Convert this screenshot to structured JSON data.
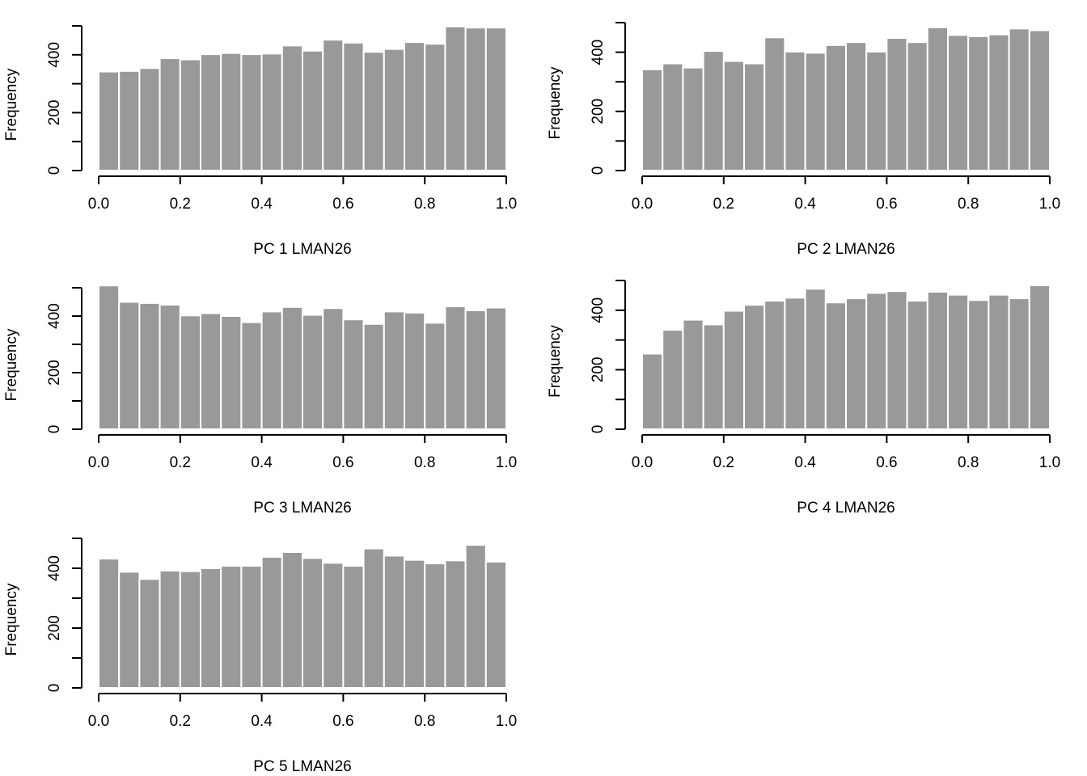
{
  "figure": {
    "colors": {
      "bar": "#999999",
      "bar_border": "#ffffff",
      "axis": "#000000",
      "background": "#ffffff"
    }
  },
  "chart_data": [
    {
      "type": "bar",
      "title": "",
      "xlabel": "PC 1 LMAN26",
      "ylabel": "Frequency",
      "xlim": [
        0,
        1
      ],
      "ylim": [
        0,
        500
      ],
      "x_ticks": [
        "0.0",
        "0.2",
        "0.4",
        "0.6",
        "0.8",
        "1.0"
      ],
      "y_ticks": [
        "0",
        "200",
        "400"
      ],
      "y_tick_values": [
        0,
        100,
        200,
        300,
        400,
        500
      ],
      "bin_edges": [
        0,
        0.05,
        0.1,
        0.15,
        0.2,
        0.25,
        0.3,
        0.35,
        0.4,
        0.45,
        0.5,
        0.55,
        0.6,
        0.65,
        0.7,
        0.75,
        0.8,
        0.85,
        0.9,
        0.95,
        1.0
      ],
      "values": [
        342,
        344,
        354,
        388,
        384,
        402,
        406,
        402,
        404,
        432,
        414,
        452,
        442,
        410,
        420,
        444,
        438,
        498,
        494,
        494
      ]
    },
    {
      "type": "bar",
      "title": "",
      "xlabel": "PC 2 LMAN26",
      "ylabel": "Frequency",
      "xlim": [
        0,
        1
      ],
      "ylim": [
        0,
        500
      ],
      "x_ticks": [
        "0.0",
        "0.2",
        "0.4",
        "0.6",
        "0.8",
        "1.0"
      ],
      "y_ticks": [
        "0",
        "200",
        "400"
      ],
      "y_tick_values": [
        0,
        100,
        200,
        300,
        400,
        500
      ],
      "bin_edges": [
        0,
        0.05,
        0.1,
        0.15,
        0.2,
        0.25,
        0.3,
        0.35,
        0.4,
        0.45,
        0.5,
        0.55,
        0.6,
        0.65,
        0.7,
        0.75,
        0.8,
        0.85,
        0.9,
        0.95,
        1.0
      ],
      "values": [
        342,
        362,
        348,
        404,
        370,
        362,
        450,
        402,
        398,
        424,
        434,
        402,
        448,
        434,
        484,
        458,
        454,
        460,
        480,
        474
      ]
    },
    {
      "type": "bar",
      "title": "",
      "xlabel": "PC 3 LMAN26",
      "ylabel": "Frequency",
      "xlim": [
        0,
        1
      ],
      "ylim": [
        0,
        500
      ],
      "x_ticks": [
        "0.0",
        "0.2",
        "0.4",
        "0.6",
        "0.8",
        "1.0"
      ],
      "y_ticks": [
        "0",
        "200",
        "400"
      ],
      "y_tick_values": [
        0,
        100,
        200,
        300,
        400,
        500
      ],
      "bin_edges": [
        0,
        0.05,
        0.1,
        0.15,
        0.2,
        0.25,
        0.3,
        0.35,
        0.4,
        0.45,
        0.5,
        0.55,
        0.6,
        0.65,
        0.7,
        0.75,
        0.8,
        0.85,
        0.9,
        0.95,
        1.0
      ],
      "values": [
        508,
        450,
        446,
        440,
        402,
        410,
        400,
        378,
        416,
        432,
        404,
        428,
        388,
        372,
        416,
        412,
        376,
        434,
        420,
        430
      ]
    },
    {
      "type": "bar",
      "title": "",
      "xlabel": "PC 4 LMAN26",
      "ylabel": "Frequency",
      "xlim": [
        0,
        1
      ],
      "ylim": [
        0,
        500
      ],
      "x_ticks": [
        "0.0",
        "0.2",
        "0.4",
        "0.6",
        "0.8",
        "1.0"
      ],
      "y_ticks": [
        "0",
        "200",
        "400"
      ],
      "y_tick_values": [
        0,
        100,
        200,
        300,
        400,
        500
      ],
      "bin_edges": [
        0,
        0.05,
        0.1,
        0.15,
        0.2,
        0.25,
        0.3,
        0.35,
        0.4,
        0.45,
        0.5,
        0.55,
        0.6,
        0.65,
        0.7,
        0.75,
        0.8,
        0.85,
        0.9,
        0.95,
        1.0
      ],
      "values": [
        254,
        334,
        368,
        352,
        398,
        418,
        432,
        442,
        472,
        426,
        440,
        458,
        464,
        432,
        462,
        452,
        434,
        452,
        440,
        484
      ]
    },
    {
      "type": "bar",
      "title": "",
      "xlabel": "PC 5 LMAN26",
      "ylabel": "Frequency",
      "xlim": [
        0,
        1
      ],
      "ylim": [
        0,
        500
      ],
      "x_ticks": [
        "0.0",
        "0.2",
        "0.4",
        "0.6",
        "0.8",
        "1.0"
      ],
      "y_ticks": [
        "0",
        "200",
        "400"
      ],
      "y_tick_values": [
        0,
        100,
        200,
        300,
        400,
        500
      ],
      "bin_edges": [
        0,
        0.05,
        0.1,
        0.15,
        0.2,
        0.25,
        0.3,
        0.35,
        0.4,
        0.45,
        0.5,
        0.55,
        0.6,
        0.65,
        0.7,
        0.75,
        0.8,
        0.85,
        0.9,
        0.95,
        1.0
      ],
      "values": [
        432,
        388,
        364,
        392,
        390,
        400,
        408,
        408,
        438,
        454,
        434,
        418,
        408,
        466,
        442,
        428,
        416,
        426,
        478,
        422
      ]
    }
  ]
}
